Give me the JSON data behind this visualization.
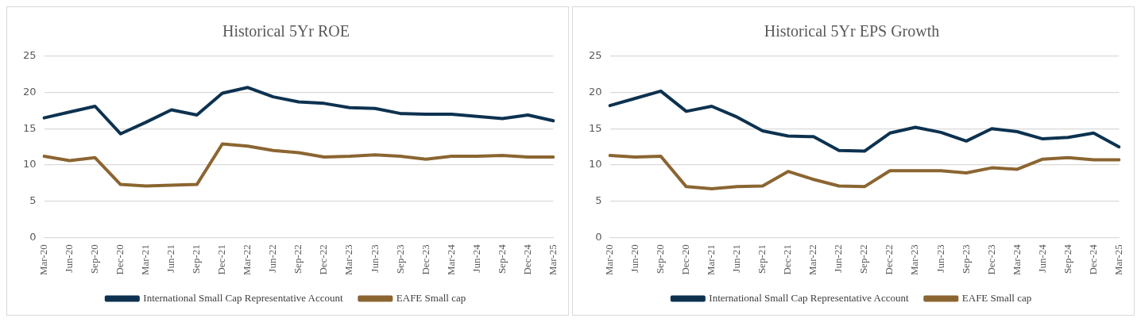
{
  "chart_data": [
    {
      "type": "line",
      "title": "Historical 5Yr ROE",
      "categories": [
        "Mar-20",
        "Jun-20",
        "Sep-20",
        "Dec-20",
        "Mar-21",
        "Jun-21",
        "Sep-21",
        "Dec-21",
        "Mar-22",
        "Jun-22",
        "Sep-22",
        "Dec-22",
        "Mar-23",
        "Jun-23",
        "Sep-23",
        "Dec-23",
        "Mar-24",
        "Jun-24",
        "Sep-24",
        "Dec-24",
        "Mar-25"
      ],
      "series": [
        {
          "name": "International Small Cap Representative Account",
          "color": "#0d3250",
          "values": [
            16.5,
            17.3,
            18.1,
            14.3,
            15.9,
            17.6,
            16.9,
            19.9,
            20.7,
            19.4,
            18.7,
            18.5,
            17.9,
            17.8,
            17.1,
            17.0,
            17.0,
            16.7,
            16.4,
            16.9,
            16.1
          ]
        },
        {
          "name": "EAFE Small cap",
          "color": "#8b6531",
          "values": [
            11.2,
            10.6,
            11.0,
            7.3,
            7.1,
            7.2,
            7.3,
            12.9,
            12.6,
            12.0,
            11.7,
            11.1,
            11.2,
            11.4,
            11.2,
            10.8,
            11.2,
            11.2,
            11.3,
            11.1,
            11.1
          ]
        }
      ],
      "ylim": [
        0,
        25
      ],
      "yticks": [
        0,
        5,
        10,
        15,
        20,
        25
      ],
      "grid": "y",
      "legend": "bottom",
      "line_style": "solid"
    },
    {
      "type": "line",
      "title": "Historical 5Yr EPS Growth",
      "categories": [
        "Mar-20",
        "Jun-20",
        "Sep-20",
        "Dec-20",
        "Mar-21",
        "Jun-21",
        "Sep-21",
        "Dec-21",
        "Mar-22",
        "Jun-22",
        "Sep-22",
        "Dec-22",
        "Mar-23",
        "Jun-23",
        "Sep-23",
        "Dec-23",
        "Mar-24",
        "Jun-24",
        "Sep-24",
        "Dec-24",
        "Mar-25"
      ],
      "series": [
        {
          "name": "International Small Cap Representative Account",
          "color": "#0d3250",
          "values": [
            18.2,
            19.2,
            20.2,
            17.4,
            18.1,
            16.6,
            14.7,
            14.0,
            13.9,
            12.0,
            11.9,
            14.4,
            15.2,
            14.5,
            13.3,
            15.0,
            14.6,
            13.6,
            13.8,
            14.4,
            12.5
          ]
        },
        {
          "name": "EAFE Small cap",
          "color": "#8b6531",
          "values": [
            11.3,
            11.1,
            11.2,
            7.0,
            6.7,
            7.0,
            7.1,
            9.1,
            8.0,
            7.1,
            7.0,
            9.2,
            9.2,
            9.2,
            8.9,
            9.6,
            9.4,
            10.8,
            11.0,
            10.7,
            10.7
          ]
        }
      ],
      "ylim": [
        0,
        25
      ],
      "yticks": [
        0,
        5,
        10,
        15,
        20,
        25
      ],
      "grid": "y",
      "legend": "bottom",
      "line_style": "solid"
    }
  ]
}
